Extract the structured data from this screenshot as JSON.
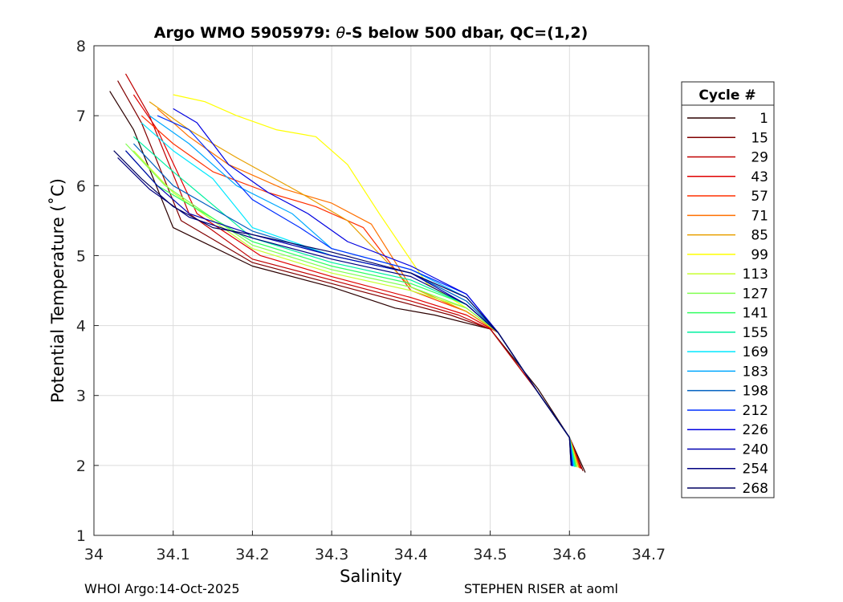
{
  "chart_data": {
    "type": "line",
    "title_prefix": "Argo WMO 5905979: ",
    "title_theta": "θ",
    "title_suffix": "-S below 500 dbar,  QC=(1,2)",
    "xlabel": "Salinity",
    "ylabel": "Potential Temperature (˚C)",
    "xlim": [
      34.0,
      34.7
    ],
    "ylim": [
      1,
      8
    ],
    "xticks": [
      34,
      34.1,
      34.2,
      34.3,
      34.4,
      34.5,
      34.6,
      34.7
    ],
    "xtick_labels": [
      "34",
      "34.1",
      "34.2",
      "34.3",
      "34.4",
      "34.5",
      "34.6",
      "34.7"
    ],
    "yticks": [
      1,
      2,
      3,
      4,
      5,
      6,
      7,
      8
    ],
    "ytick_labels": [
      "1",
      "2",
      "3",
      "4",
      "5",
      "6",
      "7",
      "8"
    ],
    "grid": true,
    "legend": {
      "title": "Cycle #",
      "position": "right",
      "entries": [
        {
          "label": "1",
          "color": "#2b0000"
        },
        {
          "label": "15",
          "color": "#800000"
        },
        {
          "label": "29",
          "color": "#c00000"
        },
        {
          "label": "43",
          "color": "#e00000"
        },
        {
          "label": "57",
          "color": "#ff3000"
        },
        {
          "label": "71",
          "color": "#ff7000"
        },
        {
          "label": "85",
          "color": "#e8a000"
        },
        {
          "label": "99",
          "color": "#ffff00"
        },
        {
          "label": "113",
          "color": "#c8ff30"
        },
        {
          "label": "127",
          "color": "#80ff50"
        },
        {
          "label": "141",
          "color": "#30ff60"
        },
        {
          "label": "155",
          "color": "#00f0a0"
        },
        {
          "label": "169",
          "color": "#00e8ff"
        },
        {
          "label": "183",
          "color": "#00a8ff"
        },
        {
          "label": "198",
          "color": "#0060c0"
        },
        {
          "label": "212",
          "color": "#0030ff"
        },
        {
          "label": "226",
          "color": "#0000e0"
        },
        {
          "label": "240",
          "color": "#0000b0"
        },
        {
          "label": "254",
          "color": "#000080"
        },
        {
          "label": "268",
          "color": "#000060"
        }
      ]
    },
    "series": [
      {
        "name": "1",
        "x": [
          34.02,
          34.05,
          34.1,
          34.2,
          34.3,
          34.38,
          34.43,
          34.5,
          34.56,
          34.6,
          34.62
        ],
        "y": [
          7.35,
          6.8,
          5.4,
          4.85,
          4.55,
          4.25,
          4.15,
          3.95,
          3.1,
          2.4,
          1.9
        ]
      },
      {
        "name": "15",
        "x": [
          34.03,
          34.06,
          34.11,
          34.2,
          34.3,
          34.4,
          34.45,
          34.5,
          34.56,
          34.6,
          34.617
        ],
        "y": [
          7.5,
          6.9,
          5.5,
          4.9,
          4.6,
          4.3,
          4.15,
          3.95,
          3.05,
          2.4,
          1.92
        ]
      },
      {
        "name": "29",
        "x": [
          34.04,
          34.07,
          34.12,
          34.2,
          34.3,
          34.4,
          34.46,
          34.5,
          34.56,
          34.6,
          34.615
        ],
        "y": [
          7.6,
          7.0,
          5.6,
          4.95,
          4.65,
          4.35,
          4.15,
          3.95,
          3.05,
          2.4,
          1.95
        ]
      },
      {
        "name": "43",
        "x": [
          34.05,
          34.08,
          34.13,
          34.21,
          34.3,
          34.4,
          34.47,
          34.51,
          34.56,
          34.6,
          34.614
        ],
        "y": [
          7.3,
          6.8,
          5.6,
          5.0,
          4.7,
          4.4,
          4.15,
          3.9,
          3.05,
          2.4,
          1.96
        ]
      },
      {
        "name": "57",
        "x": [
          34.06,
          34.1,
          34.15,
          34.22,
          34.28,
          34.34,
          34.4,
          34.47,
          34.51,
          34.56,
          34.6,
          34.613
        ],
        "y": [
          7.0,
          6.6,
          6.2,
          5.9,
          5.7,
          5.4,
          4.5,
          4.2,
          3.9,
          3.05,
          2.4,
          1.96
        ]
      },
      {
        "name": "71",
        "x": [
          34.08,
          34.12,
          34.17,
          34.24,
          34.3,
          34.35,
          34.4,
          34.47,
          34.51,
          34.56,
          34.6,
          34.612
        ],
        "y": [
          7.1,
          6.7,
          6.3,
          5.95,
          5.75,
          5.45,
          4.55,
          4.2,
          3.9,
          3.05,
          2.4,
          1.97
        ]
      },
      {
        "name": "85",
        "x": [
          34.07,
          34.12,
          34.18,
          34.26,
          34.32,
          34.4,
          34.47,
          34.51,
          34.56,
          34.6,
          34.612
        ],
        "y": [
          7.2,
          6.8,
          6.4,
          5.9,
          5.5,
          4.55,
          4.2,
          3.9,
          3.05,
          2.4,
          1.97
        ]
      },
      {
        "name": "99",
        "x": [
          34.1,
          34.14,
          34.18,
          34.23,
          34.28,
          34.32,
          34.36,
          34.42,
          34.47,
          34.51,
          34.56,
          34.6,
          34.61
        ],
        "y": [
          7.3,
          7.2,
          7.0,
          6.8,
          6.7,
          6.3,
          5.6,
          4.6,
          4.25,
          3.9,
          3.05,
          2.4,
          1.97
        ]
      },
      {
        "name": "113",
        "x": [
          34.05,
          34.1,
          34.2,
          34.3,
          34.4,
          34.47,
          34.51,
          34.56,
          34.6,
          34.61
        ],
        "y": [
          6.5,
          5.9,
          5.1,
          4.75,
          4.5,
          4.25,
          3.9,
          3.05,
          2.4,
          1.98
        ]
      },
      {
        "name": "127",
        "x": [
          34.04,
          34.09,
          34.2,
          34.3,
          34.4,
          34.47,
          34.51,
          34.56,
          34.6,
          34.609
        ],
        "y": [
          6.6,
          6.0,
          5.15,
          4.8,
          4.55,
          4.25,
          3.9,
          3.05,
          2.4,
          1.98
        ]
      },
      {
        "name": "141",
        "x": [
          34.04,
          34.08,
          34.2,
          34.3,
          34.4,
          34.47,
          34.51,
          34.56,
          34.6,
          34.608
        ],
        "y": [
          6.5,
          6.0,
          5.2,
          4.85,
          4.6,
          4.3,
          3.9,
          3.05,
          2.4,
          1.98
        ]
      },
      {
        "name": "155",
        "x": [
          34.05,
          34.1,
          34.2,
          34.3,
          34.4,
          34.47,
          34.51,
          34.56,
          34.6,
          34.607
        ],
        "y": [
          6.7,
          6.2,
          5.25,
          4.9,
          4.65,
          4.3,
          3.9,
          3.05,
          2.4,
          1.98
        ]
      },
      {
        "name": "169",
        "x": [
          34.06,
          34.1,
          34.15,
          34.2,
          34.3,
          34.4,
          34.47,
          34.51,
          34.56,
          34.6,
          34.606
        ],
        "y": [
          6.9,
          6.5,
          6.1,
          5.4,
          5.0,
          4.75,
          4.35,
          3.9,
          3.05,
          2.4,
          1.98
        ]
      },
      {
        "name": "183",
        "x": [
          34.07,
          34.12,
          34.18,
          34.25,
          34.3,
          34.4,
          34.47,
          34.51,
          34.56,
          34.6,
          34.605
        ],
        "y": [
          7.0,
          6.6,
          6.0,
          5.6,
          5.1,
          4.8,
          4.4,
          3.9,
          3.05,
          2.4,
          1.99
        ]
      },
      {
        "name": "198",
        "x": [
          34.05,
          34.1,
          34.2,
          34.3,
          34.4,
          34.47,
          34.51,
          34.56,
          34.6,
          34.604
        ],
        "y": [
          6.6,
          6.0,
          5.35,
          5.0,
          4.75,
          4.35,
          3.9,
          3.05,
          2.4,
          1.99
        ]
      },
      {
        "name": "212",
        "x": [
          34.08,
          34.12,
          34.16,
          34.2,
          34.26,
          34.3,
          34.4,
          34.47,
          34.51,
          34.56,
          34.6,
          34.604
        ],
        "y": [
          7.0,
          6.8,
          6.3,
          5.8,
          5.4,
          5.1,
          4.8,
          4.45,
          3.9,
          3.05,
          2.4,
          1.99
        ]
      },
      {
        "name": "226",
        "x": [
          34.1,
          34.13,
          34.17,
          34.22,
          34.27,
          34.32,
          34.4,
          34.47,
          34.51,
          34.56,
          34.6,
          34.603
        ],
        "y": [
          7.1,
          6.9,
          6.3,
          5.9,
          5.6,
          5.2,
          4.85,
          4.45,
          3.9,
          3.05,
          2.4,
          1.99
        ]
      },
      {
        "name": "240",
        "x": [
          34.04,
          34.08,
          34.12,
          34.2,
          34.3,
          34.4,
          34.47,
          34.51,
          34.56,
          34.6,
          34.603
        ],
        "y": [
          6.5,
          6.0,
          5.6,
          5.3,
          5.0,
          4.75,
          4.3,
          3.9,
          3.05,
          2.4,
          1.99
        ]
      },
      {
        "name": "254",
        "x": [
          34.03,
          34.07,
          34.12,
          34.2,
          34.3,
          34.4,
          34.47,
          34.51,
          34.56,
          34.6,
          34.602
        ],
        "y": [
          6.4,
          5.95,
          5.55,
          5.25,
          4.95,
          4.7,
          4.3,
          3.9,
          3.05,
          2.4,
          2.0
        ]
      },
      {
        "name": "268",
        "x": [
          34.025,
          34.06,
          34.1,
          34.15,
          34.2,
          34.3,
          34.4,
          34.47,
          34.51,
          34.56,
          34.6,
          34.602
        ],
        "y": [
          6.5,
          6.1,
          5.7,
          5.4,
          5.3,
          5.05,
          4.75,
          4.4,
          3.9,
          3.05,
          2.4,
          2.0
        ]
      }
    ]
  },
  "footer": {
    "left": "WHOI Argo:14-Oct-2025",
    "right": "STEPHEN RISER at aoml"
  }
}
